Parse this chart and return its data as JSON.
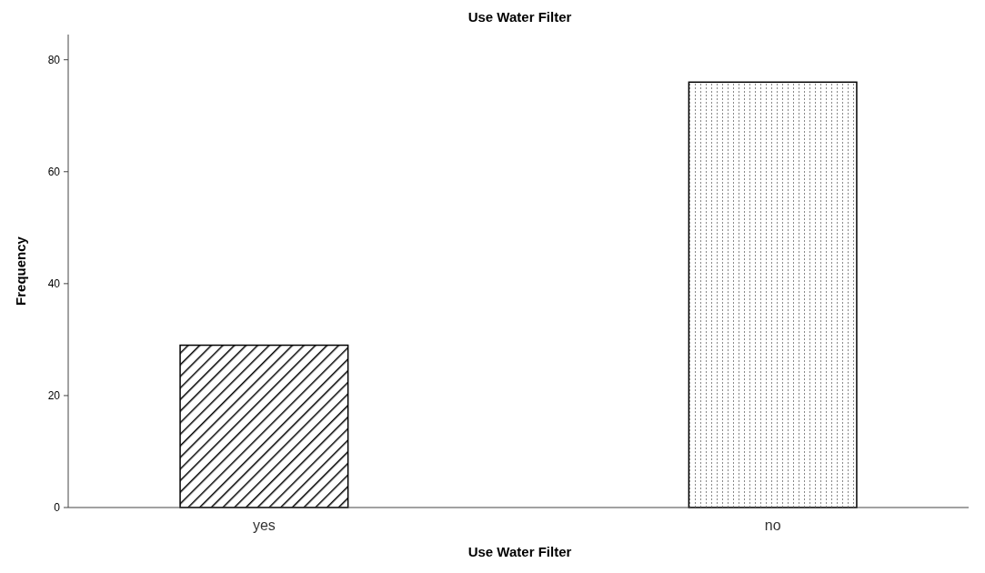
{
  "chart_data": {
    "type": "bar",
    "title": "Use Water Filter",
    "xlabel": "Use Water Filter",
    "ylabel": "Frequency",
    "categories": [
      "yes",
      "no"
    ],
    "values": [
      29,
      76
    ],
    "colors": [
      "#ffffff",
      "#ffffff"
    ],
    "ylim": [
      0,
      84.5
    ],
    "yticks": [
      0,
      20,
      40,
      60,
      80
    ],
    "grid": false
  }
}
